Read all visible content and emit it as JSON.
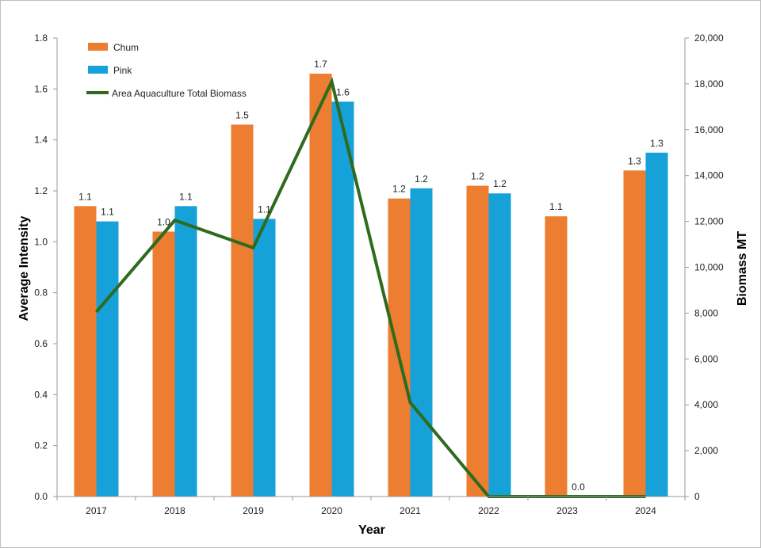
{
  "chart_data": {
    "type": "bar",
    "categories": [
      "2017",
      "2018",
      "2019",
      "2020",
      "2021",
      "2022",
      "2023",
      "2024"
    ],
    "series": [
      {
        "name": "Chum",
        "type": "bar",
        "axis": "left",
        "color": "#ED7D31",
        "values": [
          1.14,
          1.04,
          1.46,
          1.66,
          1.17,
          1.22,
          1.1,
          1.28
        ],
        "labels": [
          "1.1",
          "1.0",
          "1.5",
          "1.7",
          "1.2",
          "1.2",
          "1.1",
          "1.3"
        ]
      },
      {
        "name": "Pink",
        "type": "bar",
        "axis": "left",
        "color": "#16A1D9",
        "values": [
          1.08,
          1.14,
          1.09,
          1.55,
          1.21,
          1.19,
          0.0,
          1.35
        ],
        "labels": [
          "1.1",
          "1.1",
          "1.1",
          "1.6",
          "1.2",
          "1.2",
          "0.0",
          "1.3"
        ]
      },
      {
        "name": "Area Aquaculture Total Biomass",
        "type": "line",
        "axis": "right",
        "color": "#2E6B1E",
        "values": [
          8050,
          12050,
          10850,
          18100,
          4100,
          0,
          0,
          0
        ]
      }
    ],
    "xlabel": "Year",
    "ylabel": "Average Intensity",
    "ylabel_right": "Biomass MT",
    "ylim": [
      0,
      1.8
    ],
    "ylim_right": [
      0,
      20000
    ],
    "yticks": [
      "0.0",
      "0.2",
      "0.4",
      "0.6",
      "0.8",
      "1.0",
      "1.2",
      "1.4",
      "1.6",
      "1.8"
    ],
    "yticks_right": [
      "0",
      "2,000",
      "4,000",
      "6,000",
      "8,000",
      "10,000",
      "12,000",
      "14,000",
      "16,000",
      "18,000",
      "20,000"
    ],
    "grid": false,
    "legend_position": "top-left"
  }
}
